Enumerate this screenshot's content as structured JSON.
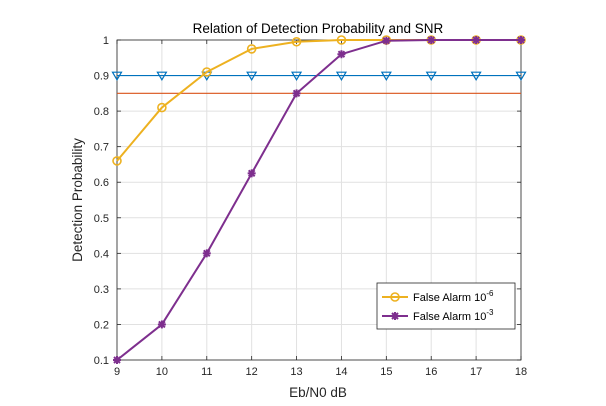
{
  "chart_data": {
    "type": "line",
    "title": "Relation of Detection Probability and SNR",
    "xlabel": "Eb/N0 dB",
    "ylabel": "Detection Probability",
    "xlim": [
      9,
      18
    ],
    "ylim": [
      0.1,
      1
    ],
    "xticks": [
      "9",
      "10",
      "11",
      "12",
      "13",
      "14",
      "15",
      "16",
      "17",
      "18"
    ],
    "yticks": [
      "0.1",
      "0.2",
      "0.3",
      "0.4",
      "0.5",
      "0.6",
      "0.7",
      "0.8",
      "0.9",
      "1"
    ],
    "grid": true,
    "legend_position": "bottom-right",
    "x": [
      9,
      10,
      11,
      12,
      13,
      14,
      15,
      16,
      17,
      18
    ],
    "series": [
      {
        "name_base": "False Alarm 10",
        "name_exp": "-6",
        "color": "#EDB120",
        "marker": "circle",
        "in_legend": true,
        "values": [
          0.66,
          0.81,
          0.91,
          0.975,
          0.995,
          1.0,
          1.0,
          1.0,
          1.0,
          1.0
        ]
      },
      {
        "name_base": "False Alarm 10",
        "name_exp": "-3",
        "color": "#7E2F8E",
        "marker": "asterisk",
        "in_legend": true,
        "values": [
          0.1,
          0.2,
          0.4,
          0.625,
          0.85,
          0.96,
          0.998,
          1.0,
          1.0,
          1.0
        ]
      },
      {
        "color": "#0072BD",
        "marker": "triangle-down",
        "in_legend": false,
        "values": [
          0.9,
          0.9,
          0.9,
          0.9,
          0.9,
          0.9,
          0.9,
          0.9,
          0.9,
          0.9
        ]
      },
      {
        "color": "#D95319",
        "marker": "none",
        "in_legend": false,
        "values": [
          0.85,
          0.85,
          0.85,
          0.85,
          0.85,
          0.85,
          0.85,
          0.85,
          0.85,
          0.85
        ]
      }
    ]
  }
}
